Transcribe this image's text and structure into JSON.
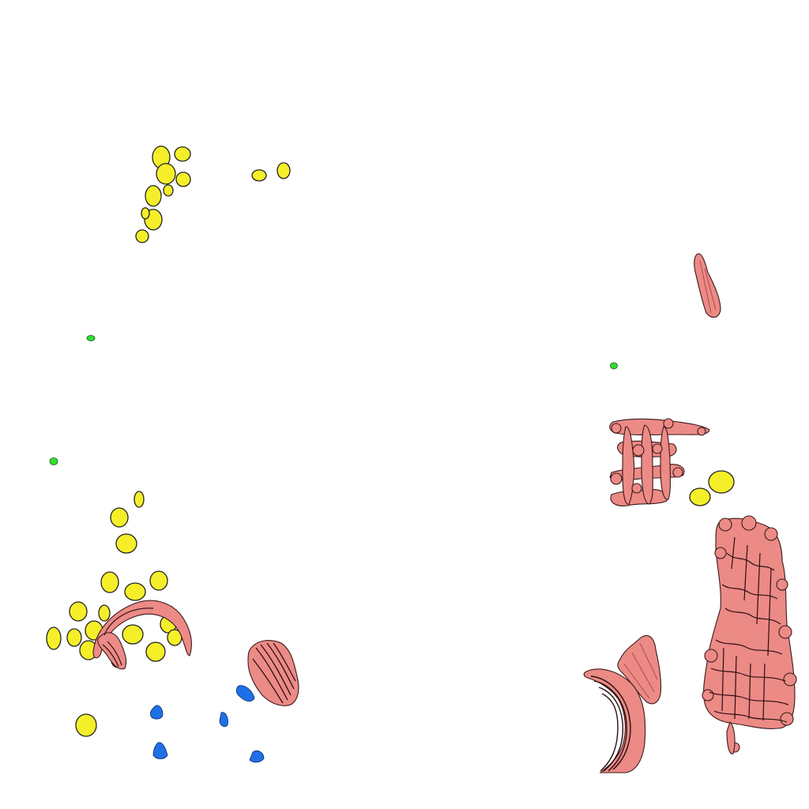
{
  "scene": {
    "background": "#ffffff",
    "colors": {
      "yellow": "#f5ef2a",
      "pink": "#ec8a86",
      "pink_dark": "#2b0f0f",
      "green": "#33dd33",
      "blue": "#1f6fe8",
      "outline": "#222222"
    },
    "objects": [
      "yellow-blob-cluster-top-left",
      "yellow-blob-pair-top",
      "green-dot-left-upper",
      "green-dot-left-lower",
      "green-dot-right",
      "pink-fiber-streak-right-upper",
      "pink-lattice-right-middle",
      "yellow-blob-pair-right",
      "pink-dense-mass-right-lower",
      "pink-arched-bundle-right-bottom",
      "yellow-blob-cluster-bottom-left",
      "pink-arc-bottom-left",
      "pink-fan-bundle-bottom-center",
      "blue-fragments-bottom-left"
    ]
  }
}
